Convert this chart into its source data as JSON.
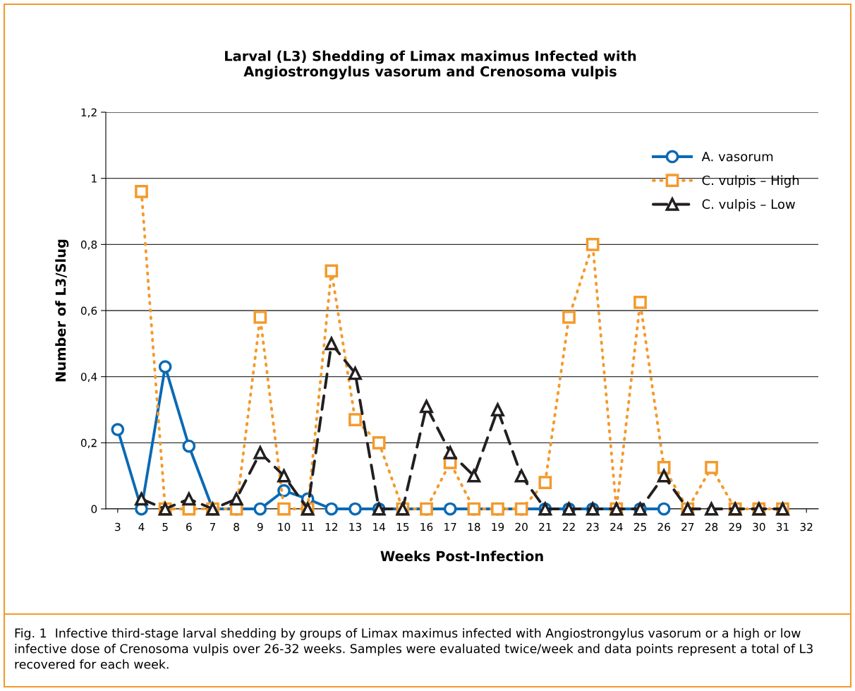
{
  "chart_data": {
    "type": "line",
    "title": "Larval (L3) Shedding of Limax maximus Infected with\nAngiostrongylus vasorum and Crenosoma vulpis",
    "xlabel": "Weeks Post-Infection",
    "ylabel": "Number of L3/Slug",
    "categories": [
      "3",
      "4",
      "5",
      "6",
      "7",
      "8",
      "9",
      "10",
      "11",
      "12",
      "13",
      "14",
      "15",
      "16",
      "17",
      "18",
      "19",
      "20",
      "21",
      "22",
      "23",
      "24",
      "25",
      "26",
      "27",
      "28",
      "29",
      "30",
      "31",
      "32"
    ],
    "series": [
      {
        "name": "A. vasorum",
        "color": "#0a6ab4",
        "marker": "circle",
        "line_style": "solid",
        "values": [
          0.24,
          0,
          0.43,
          0.19,
          0,
          0,
          0,
          0.055,
          0.03,
          0,
          0,
          0,
          0,
          0,
          0,
          0,
          0,
          0,
          0,
          0,
          0,
          0,
          0,
          0,
          null,
          null,
          null,
          null,
          null,
          null
        ]
      },
      {
        "name": "C. vulpis – High",
        "color": "#f39a2c",
        "marker": "square",
        "line_style": "dotted",
        "values": [
          null,
          0.96,
          0,
          0,
          0,
          0,
          0.58,
          0,
          0,
          0.72,
          0.27,
          0.2,
          0,
          0,
          0.14,
          0,
          0,
          0,
          0.08,
          0.58,
          0.8,
          0,
          0.625,
          0.125,
          0,
          0.125,
          0,
          0,
          0,
          null
        ]
      },
      {
        "name": "C. vulpis – Low",
        "color": "#231f20",
        "marker": "triangle",
        "line_style": "dashed",
        "values": [
          null,
          0.03,
          0,
          0.03,
          0,
          0.03,
          0.17,
          0.1,
          0,
          0.5,
          0.41,
          0,
          0,
          0.31,
          0.17,
          0.1,
          0.3,
          0.1,
          0,
          0,
          0,
          0,
          0,
          0.1,
          0,
          0,
          0,
          0,
          0,
          null
        ]
      }
    ],
    "ylim": [
      0,
      1.2
    ],
    "yticks": [
      0,
      {
        "value": 0.2,
        "label": "0,2"
      },
      {
        "value": 0.4,
        "label": "0,4"
      },
      {
        "value": 0.6,
        "label": "0,6"
      },
      {
        "value": 0.8,
        "label": "0,8"
      },
      1,
      {
        "value": 1.2,
        "label": "1,2"
      }
    ],
    "grid": "y",
    "legend": "top right",
    "annotations": [
      "Fig. 1  Infective third-stage larval shedding by groups of Limax maximus infected with Angiostrongylus vasorum or a high or low infective dose of Crenosoma vulpis over 26-32 weeks. Samples were evaluated twice/week and data points represent a total of L3 recovered for each week."
    ]
  }
}
